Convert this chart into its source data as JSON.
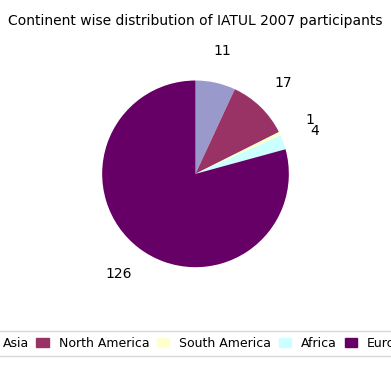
{
  "title": "Continent wise distribution of IATUL 2007 participants",
  "labels": [
    "Asia",
    "North America",
    "South America",
    "Africa",
    "Europe"
  ],
  "values": [
    11,
    17,
    1,
    4,
    126
  ],
  "colors": [
    "#9999cc",
    "#993366",
    "#ffffcc",
    "#ccffff",
    "#660066"
  ],
  "startangle": 90,
  "figsize": [
    3.91,
    3.66
  ],
  "dpi": 100,
  "title_fontsize": 10,
  "label_fontsize": 10,
  "legend_fontsize": 9
}
